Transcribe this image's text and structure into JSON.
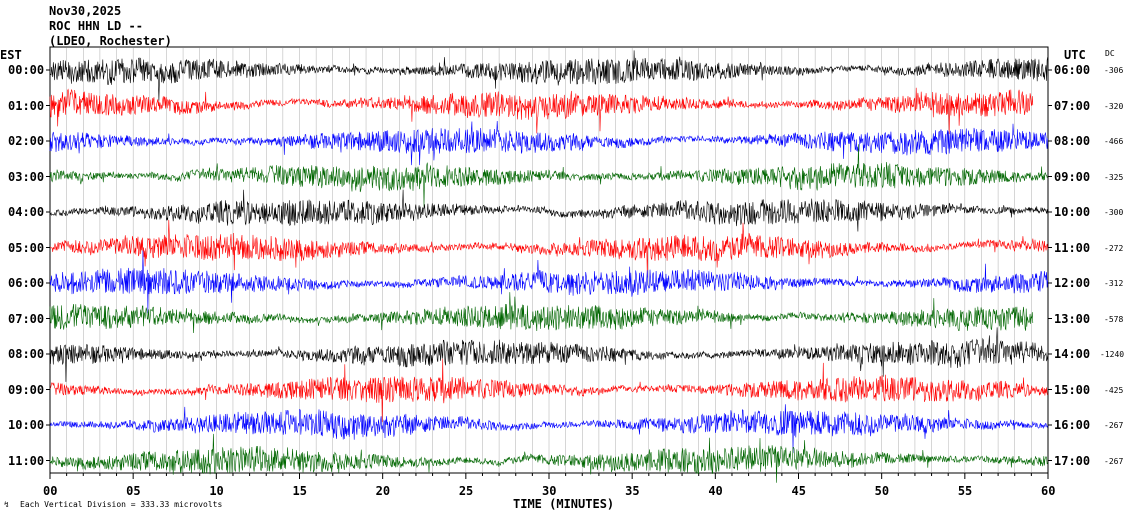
{
  "header": {
    "date": "Nov30,2025",
    "station": "ROC HHN LD --",
    "network": "(LDEO, Rochester)"
  },
  "axis_titles": {
    "left": "EST",
    "right": "UTC",
    "dc": "DC",
    "bottom": "TIME (MINUTES)"
  },
  "footnote": "Each Vertical Division = 333.33 microvolts",
  "colors": {
    "c1": "#000000",
    "c2": "#ff0000",
    "c3": "#0000ff",
    "c4": "#006600",
    "grid": "#808080"
  },
  "chart_data": {
    "type": "line",
    "title": "ROC HHN LD --",
    "xlabel": "TIME (MINUTES)",
    "xlim": [
      0,
      60
    ],
    "x_ticks": [
      "00",
      "05",
      "10",
      "15",
      "20",
      "25",
      "30",
      "35",
      "40",
      "45",
      "50",
      "55",
      "60"
    ],
    "rows": [
      {
        "est": "00:00",
        "utc": "06:00",
        "dc": "-306",
        "color": "c1"
      },
      {
        "est": "01:00",
        "utc": "07:00",
        "dc": "-320",
        "color": "c2"
      },
      {
        "est": "02:00",
        "utc": "08:00",
        "dc": "-466",
        "color": "c3"
      },
      {
        "est": "03:00",
        "utc": "09:00",
        "dc": "-325",
        "color": "c4"
      },
      {
        "est": "04:00",
        "utc": "10:00",
        "dc": "-300",
        "color": "c1"
      },
      {
        "est": "05:00",
        "utc": "11:00",
        "dc": "-272",
        "color": "c2"
      },
      {
        "est": "06:00",
        "utc": "12:00",
        "dc": "-312",
        "color": "c3"
      },
      {
        "est": "07:00",
        "utc": "13:00",
        "dc": "-578",
        "color": "c4"
      },
      {
        "est": "08:00",
        "utc": "14:00",
        "dc": "-1240",
        "color": "c1"
      },
      {
        "est": "09:00",
        "utc": "15:00",
        "dc": "-425",
        "color": "c2"
      },
      {
        "est": "10:00",
        "utc": "16:00",
        "dc": "-267",
        "color": "c3"
      },
      {
        "est": "11:00",
        "utc": "17:00",
        "dc": "-267",
        "color": "c4"
      }
    ]
  }
}
